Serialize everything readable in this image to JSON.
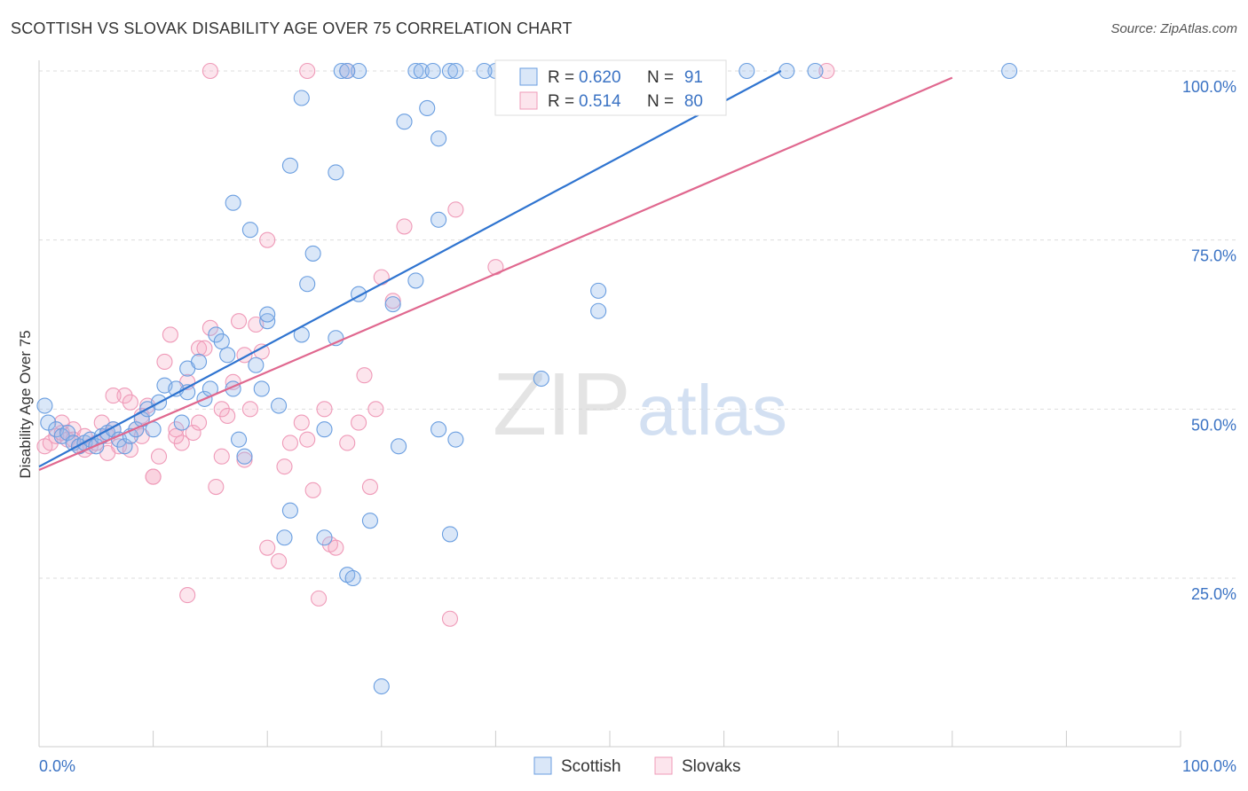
{
  "header": {
    "title": "SCOTTISH VS SLOVAK DISABILITY AGE OVER 75 CORRELATION CHART",
    "source": "Source: ZipAtlas.com"
  },
  "watermark": {
    "zip": "ZIP",
    "atlas": "atlas"
  },
  "chart_data": {
    "type": "scatter",
    "title": "SCOTTISH VS SLOVAK DISABILITY AGE OVER 75 CORRELATION CHART",
    "ylabel": "Disability Age Over 75",
    "xlabel": "",
    "xlim": [
      0,
      100
    ],
    "ylim": [
      5,
      100
    ],
    "x_tick_labels": [
      {
        "value": 0,
        "label": "0.0%"
      },
      {
        "value": 100,
        "label": "100.0%"
      }
    ],
    "y_tick_labels": [
      {
        "value": 25,
        "label": "25.0%"
      },
      {
        "value": 50,
        "label": "50.0%"
      },
      {
        "value": 75,
        "label": "75.0%"
      },
      {
        "value": 100,
        "label": "100.0%"
      }
    ],
    "grid": true,
    "legend_placement": "top-center",
    "legend_stats": [
      {
        "r_label": "R =",
        "r": "0.620",
        "n_label": "N =",
        "n": "91"
      },
      {
        "r_label": "R =",
        "r": "0.514",
        "n_label": "N =",
        "n": "80"
      }
    ],
    "series": [
      {
        "name": "Scottish",
        "color": "#6a9ee0",
        "line_color": "#2f74d0",
        "trend": {
          "x": [
            0,
            65
          ],
          "y": [
            41.5,
            100
          ]
        },
        "points": [
          [
            0.5,
            50.5
          ],
          [
            0.8,
            48
          ],
          [
            1.5,
            47
          ],
          [
            2,
            46
          ],
          [
            2.5,
            46.5
          ],
          [
            3,
            45
          ],
          [
            3.5,
            44.5
          ],
          [
            4,
            45
          ],
          [
            4.5,
            45.5
          ],
          [
            5,
            44.5
          ],
          [
            5.5,
            46
          ],
          [
            6,
            46.5
          ],
          [
            6.5,
            47
          ],
          [
            7,
            45.5
          ],
          [
            7.5,
            44.5
          ],
          [
            8,
            46
          ],
          [
            8.5,
            47
          ],
          [
            9,
            48.5
          ],
          [
            9.5,
            50
          ],
          [
            10,
            47
          ],
          [
            10.5,
            51
          ],
          [
            11,
            53.5
          ],
          [
            12,
            53
          ],
          [
            12.5,
            48
          ],
          [
            13,
            56
          ],
          [
            13,
            52.5
          ],
          [
            14,
            57
          ],
          [
            14.5,
            51.5
          ],
          [
            15,
            53
          ],
          [
            15.5,
            61
          ],
          [
            16,
            60
          ],
          [
            16.5,
            58
          ],
          [
            17,
            53
          ],
          [
            17.5,
            45.5
          ],
          [
            18,
            43
          ],
          [
            19,
            56.5
          ],
          [
            19.5,
            53
          ],
          [
            20,
            63
          ],
          [
            20,
            64
          ],
          [
            21,
            50.5
          ],
          [
            22,
            35
          ],
          [
            21.5,
            31
          ],
          [
            23,
            61
          ],
          [
            23.5,
            68.5
          ],
          [
            24,
            73
          ],
          [
            25,
            47
          ],
          [
            25,
            31
          ],
          [
            26,
            60.5
          ],
          [
            27,
            25.5
          ],
          [
            27.5,
            25
          ],
          [
            28,
            67
          ],
          [
            29,
            33.5
          ],
          [
            30,
            9
          ],
          [
            31,
            65.5
          ],
          [
            31.5,
            44.5
          ],
          [
            33,
            69
          ],
          [
            35,
            47
          ],
          [
            36,
            31.5
          ],
          [
            36.5,
            45.5
          ],
          [
            44,
            54.5
          ],
          [
            49,
            67.5
          ],
          [
            49,
            64.5
          ],
          [
            22,
            86
          ],
          [
            26,
            85
          ],
          [
            35,
            90
          ],
          [
            35,
            78
          ],
          [
            17,
            80.5
          ],
          [
            18.5,
            76.5
          ],
          [
            32,
            92.5
          ],
          [
            34,
            94.5
          ],
          [
            23,
            96
          ],
          [
            26.5,
            100
          ],
          [
            28,
            100
          ],
          [
            33,
            100
          ],
          [
            33.5,
            100
          ],
          [
            36,
            100
          ],
          [
            36.5,
            100
          ],
          [
            40,
            100
          ],
          [
            42,
            100
          ],
          [
            45,
            100
          ],
          [
            48,
            100
          ],
          [
            51,
            100
          ],
          [
            62,
            100
          ],
          [
            65.5,
            100
          ],
          [
            85,
            100
          ],
          [
            34.5,
            100
          ],
          [
            27,
            100
          ],
          [
            39,
            100
          ],
          [
            50,
            100
          ],
          [
            57,
            100
          ],
          [
            68,
            100
          ]
        ]
      },
      {
        "name": "Slovaks",
        "color": "#ef9ab8",
        "line_color": "#e0688f",
        "trend": {
          "x": [
            0,
            80
          ],
          "y": [
            41,
            99
          ]
        },
        "points": [
          [
            0.5,
            44.5
          ],
          [
            1,
            45
          ],
          [
            1.5,
            46
          ],
          [
            2,
            46.5
          ],
          [
            2.5,
            45.5
          ],
          [
            3,
            47
          ],
          [
            3.5,
            44.5
          ],
          [
            4,
            44
          ],
          [
            4.5,
            44.5
          ],
          [
            5,
            45
          ],
          [
            5.5,
            48
          ],
          [
            6,
            46
          ],
          [
            6.5,
            47
          ],
          [
            7,
            44.5
          ],
          [
            7.5,
            52
          ],
          [
            8,
            51
          ],
          [
            8.5,
            47
          ],
          [
            9,
            46
          ],
          [
            9.5,
            50.5
          ],
          [
            10,
            40
          ],
          [
            10.5,
            43
          ],
          [
            11,
            57
          ],
          [
            11.5,
            61
          ],
          [
            12,
            47
          ],
          [
            12.5,
            45
          ],
          [
            13,
            54
          ],
          [
            13.5,
            46.5
          ],
          [
            14,
            59
          ],
          [
            14.5,
            59
          ],
          [
            15,
            62
          ],
          [
            15.5,
            38.5
          ],
          [
            16,
            43
          ],
          [
            16.5,
            49
          ],
          [
            17,
            54
          ],
          [
            17.5,
            63
          ],
          [
            18,
            42.5
          ],
          [
            18.5,
            50
          ],
          [
            19,
            62.5
          ],
          [
            19.5,
            58.5
          ],
          [
            20,
            75
          ],
          [
            20,
            29.5
          ],
          [
            21,
            27.5
          ],
          [
            21.5,
            41.5
          ],
          [
            22,
            45
          ],
          [
            23,
            48
          ],
          [
            23.5,
            45.5
          ],
          [
            24,
            38
          ],
          [
            24.5,
            22
          ],
          [
            25,
            50
          ],
          [
            25.5,
            30
          ],
          [
            26,
            29.5
          ],
          [
            27,
            45
          ],
          [
            28,
            48
          ],
          [
            28.5,
            55
          ],
          [
            29,
            38.5
          ],
          [
            29.5,
            50
          ],
          [
            30,
            69.5
          ],
          [
            31,
            66
          ],
          [
            32,
            77
          ],
          [
            36,
            19
          ],
          [
            36.5,
            79.5
          ],
          [
            40,
            71
          ],
          [
            13,
            22.5
          ],
          [
            10,
            40
          ],
          [
            8,
            44
          ],
          [
            6,
            43.5
          ],
          [
            3,
            45.5
          ],
          [
            15,
            100
          ],
          [
            23.5,
            100
          ],
          [
            27,
            100
          ],
          [
            55,
            100
          ],
          [
            69,
            100
          ],
          [
            2,
            48
          ],
          [
            4,
            46
          ],
          [
            9,
            49
          ],
          [
            12,
            46
          ],
          [
            14,
            48
          ],
          [
            16,
            50
          ],
          [
            18,
            58
          ],
          [
            6.5,
            52
          ]
        ]
      }
    ]
  }
}
